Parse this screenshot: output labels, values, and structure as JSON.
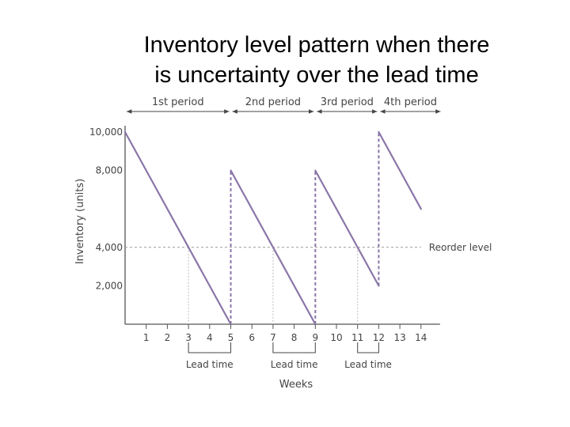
{
  "slide": {
    "title_line1": "Inventory level pattern when there",
    "title_line2": "is uncertainty over the lead time"
  },
  "chart_data": {
    "type": "line",
    "xlabel": "Weeks",
    "ylabel": "Inventory (units)",
    "x_ticks": [
      "1",
      "2",
      "3",
      "4",
      "5",
      "6",
      "7",
      "8",
      "9",
      "10",
      "11",
      "12",
      "13",
      "14"
    ],
    "y_ticks": [
      {
        "value": 2000,
        "label": "2,000"
      },
      {
        "value": 4000,
        "label": "4,000"
      },
      {
        "value": 8000,
        "label": "8,000"
      },
      {
        "value": 10000,
        "label": "10,000"
      }
    ],
    "xlim": [
      0,
      14.8
    ],
    "ylim": [
      0,
      10300
    ],
    "grid": false,
    "colors": {
      "series": "#8a76a8",
      "axis": "#555555",
      "guide": "#999999"
    },
    "series": [
      {
        "x": [
          0,
          5
        ],
        "y": [
          10000,
          0
        ]
      },
      {
        "x": [
          5,
          9
        ],
        "y": [
          8000,
          0
        ]
      },
      {
        "x": [
          9,
          12
        ],
        "y": [
          8000,
          2000
        ]
      },
      {
        "x": [
          12,
          14
        ],
        "y": [
          10000,
          6000
        ]
      }
    ],
    "verticals": [
      {
        "x": 5,
        "y": [
          0,
          8000
        ]
      },
      {
        "x": 9,
        "y": [
          0,
          8000
        ]
      },
      {
        "x": 12,
        "y": [
          2000,
          10000
        ]
      }
    ],
    "reorder": {
      "value": 4000,
      "label": "Reorder level",
      "x_end": 14
    },
    "reorder_drops": [
      3,
      7,
      11
    ],
    "periods": [
      {
        "label": "1st period",
        "x": [
          0,
          5
        ]
      },
      {
        "label": "2nd  period",
        "x": [
          5,
          9
        ]
      },
      {
        "label": "3rd period",
        "x": [
          9,
          12
        ]
      },
      {
        "label": "4th period",
        "x": [
          12,
          15
        ]
      }
    ],
    "lead_times": [
      {
        "label": "Lead time",
        "x": [
          3,
          5
        ]
      },
      {
        "label": "Lead time",
        "x": [
          7,
          9
        ]
      },
      {
        "label": "Lead time",
        "x": [
          11,
          12
        ]
      }
    ]
  }
}
